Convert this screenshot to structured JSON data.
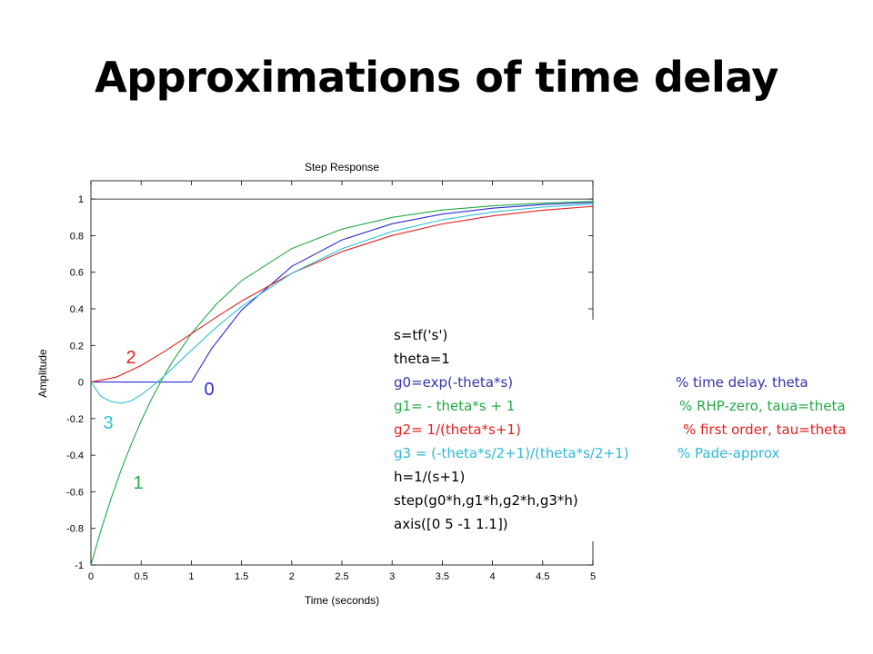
{
  "slide": {
    "title": "Approximations of time delay"
  },
  "chart_data": {
    "type": "line",
    "title": "Step Response",
    "xlabel": "Time (seconds)",
    "ylabel": "Amplitude",
    "xlim": [
      0,
      5
    ],
    "ylim": [
      -1,
      1.1
    ],
    "xticks": [
      "0",
      "0.5",
      "1",
      "1.5",
      "2",
      "2.5",
      "3",
      "3.5",
      "4",
      "4.5",
      "5"
    ],
    "yticks": [
      "-1",
      "-0.8",
      "-0.6",
      "-0.4",
      "-0.2",
      "0",
      "0.2",
      "0.4",
      "0.6",
      "0.8",
      "1"
    ],
    "reference_line": 1,
    "grid": false,
    "series": [
      {
        "name": "0",
        "color": "#2b2bd6",
        "x": [
          0,
          0.5,
          1,
          1.2,
          1.5,
          2,
          2.5,
          3,
          3.5,
          4,
          4.5,
          5
        ],
        "y": [
          0,
          0,
          0,
          0.181,
          0.393,
          0.632,
          0.777,
          0.865,
          0.918,
          0.95,
          0.97,
          0.982
        ]
      },
      {
        "name": "1",
        "color": "#22aa44",
        "x": [
          0,
          0.1,
          0.2,
          0.3,
          0.4,
          0.5,
          0.6,
          0.7,
          0.8,
          1,
          1.25,
          1.5,
          2,
          2.5,
          3,
          3.5,
          4,
          4.5,
          5
        ],
        "y": [
          -1,
          -0.81,
          -0.637,
          -0.482,
          -0.341,
          -0.213,
          -0.098,
          0.007,
          0.101,
          0.264,
          0.427,
          0.554,
          0.729,
          0.836,
          0.9,
          0.94,
          0.963,
          0.978,
          0.987
        ]
      },
      {
        "name": "2",
        "color": "#e62020",
        "x": [
          0,
          0.25,
          0.5,
          0.75,
          1,
          1.25,
          1.5,
          2,
          2.5,
          3,
          3.5,
          4,
          4.5,
          5
        ],
        "y": [
          0,
          0.026,
          0.09,
          0.173,
          0.264,
          0.355,
          0.442,
          0.594,
          0.713,
          0.801,
          0.864,
          0.908,
          0.939,
          0.96
        ]
      },
      {
        "name": "3",
        "color": "#30c0d8",
        "x": [
          0,
          0.1,
          0.2,
          0.3,
          0.4,
          0.5,
          0.6,
          0.7,
          0.8,
          1,
          1.25,
          1.5,
          2,
          2.5,
          3,
          3.5,
          4,
          4.5,
          5
        ],
        "y": [
          0,
          -0.079,
          -0.107,
          -0.116,
          -0.103,
          -0.07,
          -0.028,
          0.018,
          0.069,
          0.173,
          0.299,
          0.413,
          0.594,
          0.728,
          0.823,
          0.887,
          0.929,
          0.956,
          0.973
        ]
      }
    ],
    "annotations": [
      "0",
      "1",
      "2",
      "3"
    ]
  },
  "code": {
    "line1": "s=tf('s')",
    "line2": "theta=1",
    "line3": "g0=exp(-theta*s)",
    "line3_comment": "% time delay. theta",
    "line4": "g1= - theta*s + 1",
    "line4_comment": "% RHP-zero, taua=theta",
    "line5": "g2= 1/(theta*s+1)",
    "line5_comment": "% first order, tau=theta",
    "line6": "g3 = (-theta*s/2+1)/(theta*s/2+1)",
    "line6_comment": "% Pade-approx",
    "line7": "h=1/(s+1)",
    "line8": "step(g0*h,g1*h,g2*h,g3*h)",
    "line9": "axis([0 5 -1 1.1])",
    "colors": {
      "black": "#000000",
      "blue": "#3333aa",
      "green": "#22aa44",
      "red": "#e62020",
      "cyan": "#30b8d8"
    }
  }
}
